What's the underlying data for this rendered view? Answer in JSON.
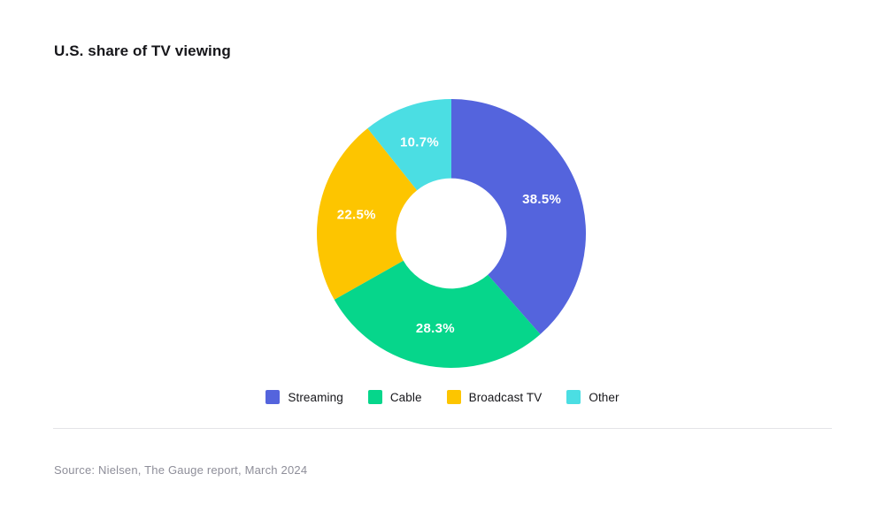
{
  "page": {
    "title": "U.S. share of TV viewing",
    "source": "Source: Nielsen, The Gauge report, March 2024"
  },
  "chart_data": {
    "type": "pie",
    "subtype": "donut",
    "title": "U.S. share of TV viewing",
    "categories": [
      "Streaming",
      "Cable",
      "Broadcast TV",
      "Other"
    ],
    "values": [
      38.5,
      28.3,
      22.5,
      10.7
    ],
    "labels": [
      "38.5%",
      "28.3%",
      "22.5%",
      "10.7%"
    ],
    "colors": [
      "#5464DD",
      "#06D68B",
      "#FDC500",
      "#4BDEE3"
    ],
    "start_angle_deg": 0,
    "direction": "clockwise",
    "inner_radius_ratio": 0.41,
    "label_color": "#FFFFFF",
    "legend_position": "bottom",
    "source": "Source: Nielsen, The Gauge report, March 2024"
  }
}
